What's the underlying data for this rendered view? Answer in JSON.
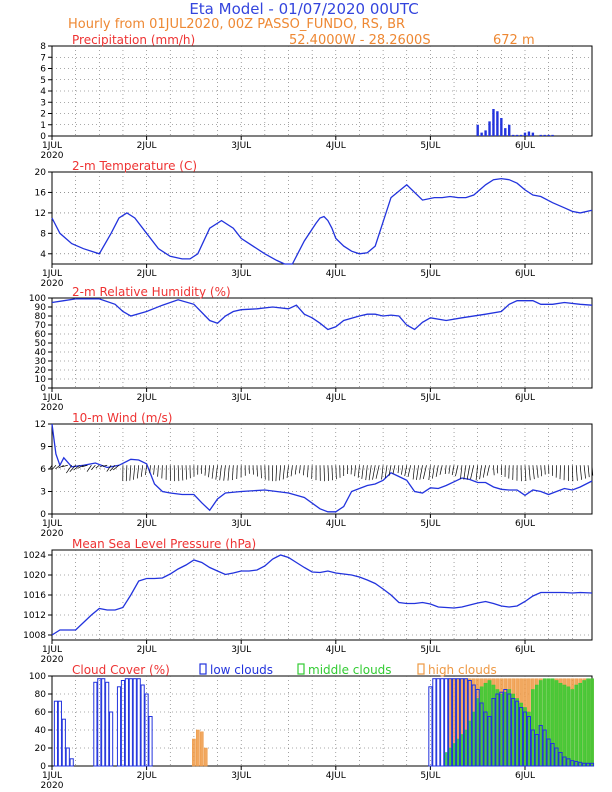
{
  "header": {
    "title": "Eta Model - 01/07/2020 00UTC",
    "line2": "Hourly from 01JUL2020, 00Z  PASSO_FUNDO, RS, BR",
    "coords": "52.4000W - 28.2600S",
    "elevation": "672  m"
  },
  "colors": {
    "title_blue": "#3344dd",
    "subtitle_orange": "#ee8833",
    "panel_red": "#ee3333",
    "line_blue": "#2233dd",
    "orange": "#ee9944",
    "green": "#33cc33"
  },
  "chart_data": [
    {
      "id": "precip",
      "type": "bar",
      "title": "Precipitation (mm/h)",
      "ylim": [
        0,
        8
      ],
      "yticks": [
        "0",
        "1",
        "2",
        "3",
        "4",
        "5",
        "6",
        "7",
        "8"
      ],
      "xticks": [
        "1JUL",
        "2JUL",
        "3JUL",
        "4JUL",
        "5JUL",
        "6JUL"
      ],
      "year": "2020",
      "x_hours": [
        108,
        109,
        110,
        111,
        112,
        113,
        114,
        115,
        116,
        117,
        118,
        119,
        120,
        121,
        122,
        124,
        125,
        126,
        127
      ],
      "values": [
        1.0,
        0.3,
        0.5,
        1.3,
        2.4,
        2.2,
        1.6,
        0.7,
        1.0,
        0.1,
        0.1,
        0.1,
        0.3,
        0.4,
        0.3,
        0.1,
        0.1,
        0.1,
        0.1
      ]
    },
    {
      "id": "temp",
      "type": "line",
      "title": "2-m Temperature (C)",
      "ylim": [
        2,
        20
      ],
      "yticks": [
        "4",
        "8",
        "12",
        "16",
        "20"
      ],
      "xticks": [
        "1JUL",
        "2JUL",
        "3JUL",
        "4JUL",
        "5JUL",
        "6JUL"
      ],
      "year": "2020",
      "x_hours": [
        0,
        2,
        5,
        8,
        12,
        15,
        17,
        19,
        21,
        24,
        27,
        30,
        33,
        35,
        37,
        40,
        43,
        46,
        48,
        50,
        54,
        57,
        59,
        61,
        64,
        67,
        68,
        69,
        70,
        71,
        72,
        74,
        76,
        78,
        80,
        82,
        86,
        90,
        94,
        97,
        99,
        101,
        103,
        105,
        107,
        110,
        112,
        114,
        116,
        118,
        120,
        122,
        124,
        127,
        130,
        132,
        134,
        137
      ],
      "values": [
        11,
        8,
        6,
        5,
        4,
        8,
        11,
        12,
        11,
        8,
        5,
        3.5,
        3,
        3,
        4,
        9,
        10.5,
        9,
        7,
        6,
        4,
        2.7,
        2,
        2,
        6.5,
        10,
        11,
        11.3,
        10.5,
        9,
        7,
        5.5,
        4.5,
        4,
        4.2,
        5.5,
        15,
        17.5,
        14.5,
        15,
        15,
        15.2,
        15,
        15,
        15.5,
        17.5,
        18.5,
        18.7,
        18.5,
        17.8,
        16.5,
        15.5,
        15.2,
        14,
        13,
        12.3,
        12,
        12.5
      ]
    },
    {
      "id": "rh",
      "type": "line",
      "title": "2-m Relative Humidity (%)",
      "ylim": [
        0,
        100
      ],
      "yticks": [
        "0",
        "10",
        "20",
        "30",
        "40",
        "50",
        "60",
        "70",
        "80",
        "90",
        "100"
      ],
      "xticks": [
        "1JUL",
        "2JUL",
        "3JUL",
        "4JUL",
        "5JUL",
        "6JUL"
      ],
      "year": "2020",
      "x_hours": [
        0,
        3,
        6,
        12,
        16,
        18,
        20,
        24,
        28,
        32,
        36,
        40,
        42,
        44,
        46,
        48,
        52,
        56,
        60,
        62,
        64,
        66,
        68,
        70,
        72,
        74,
        78,
        80,
        82,
        84,
        86,
        88,
        90,
        92,
        94,
        96,
        100,
        104,
        110,
        114,
        116,
        118,
        120,
        122,
        124,
        127,
        130,
        134,
        137
      ],
      "values": [
        95,
        97,
        99,
        99,
        93,
        85,
        80,
        85,
        92,
        98,
        93,
        75,
        72,
        80,
        85,
        87,
        88,
        90,
        88,
        92,
        82,
        78,
        72,
        65,
        68,
        75,
        80,
        82,
        82,
        80,
        81,
        80,
        70,
        65,
        73,
        78,
        75,
        78,
        82,
        85,
        93,
        97,
        97,
        97,
        93,
        93,
        95,
        93,
        92
      ]
    },
    {
      "id": "wind",
      "type": "line",
      "title": "10-m Wind (m/s)",
      "ylim": [
        0,
        12
      ],
      "yticks": [
        "0",
        "3",
        "6",
        "9",
        "12"
      ],
      "xticks": [
        "1JUL",
        "2JUL",
        "3JUL",
        "4JUL",
        "5JUL",
        "6JUL"
      ],
      "year": "2020",
      "x_hours": [
        0,
        1,
        2,
        3,
        5,
        8,
        11,
        14,
        17,
        20,
        22,
        24,
        26,
        28,
        30,
        33,
        36,
        38,
        40,
        42,
        44,
        48,
        54,
        60,
        64,
        68,
        70,
        72,
        74,
        76,
        78,
        80,
        82,
        84,
        86,
        88,
        90,
        92,
        94,
        96,
        98,
        100,
        102,
        104,
        106,
        108,
        110,
        112,
        114,
        116,
        118,
        120,
        122,
        124,
        126,
        128,
        130,
        132,
        134,
        137
      ],
      "values": [
        12,
        8,
        6.5,
        7.5,
        6.3,
        6.5,
        6.8,
        6.2,
        6.5,
        7.3,
        7.2,
        6.7,
        4,
        3,
        2.8,
        2.6,
        2.6,
        1.5,
        0.5,
        2,
        2.8,
        3,
        3.2,
        2.8,
        2.2,
        0.7,
        0.3,
        0.3,
        1,
        3,
        3.4,
        3.8,
        4,
        4.5,
        5.5,
        5,
        4.5,
        3,
        2.8,
        3.5,
        3.4,
        3.8,
        4.3,
        4.8,
        4.6,
        4.2,
        4.2,
        3.6,
        3.3,
        3.2,
        3.2,
        2.5,
        3.2,
        3,
        2.6,
        3,
        3.4,
        3.2,
        3.6,
        4.4
      ]
    },
    {
      "id": "mslp",
      "type": "line",
      "title": "Mean Sea Level Pressure (hPa)",
      "ylim": [
        1007,
        1025
      ],
      "yticks": [
        "1008",
        "1012",
        "1016",
        "1020",
        "1024"
      ],
      "xticks": [
        "1JUL",
        "2JUL",
        "3JUL",
        "4JUL",
        "5JUL",
        "6JUL"
      ],
      "year": "2020",
      "x_hours": [
        0,
        2,
        4,
        6,
        8,
        10,
        12,
        14,
        16,
        18,
        20,
        22,
        24,
        26,
        28,
        30,
        32,
        34,
        36,
        38,
        40,
        42,
        44,
        46,
        48,
        50,
        52,
        54,
        56,
        58,
        60,
        62,
        64,
        66,
        68,
        70,
        72,
        74,
        76,
        78,
        80,
        82,
        84,
        86,
        88,
        90,
        92,
        94,
        96,
        98,
        100,
        102,
        104,
        106,
        108,
        110,
        112,
        114,
        116,
        118,
        120,
        122,
        124,
        126,
        128,
        130,
        132,
        134,
        137
      ],
      "values": [
        1008,
        1009,
        1009,
        1009,
        1010.5,
        1012,
        1013.3,
        1013,
        1013,
        1013.5,
        1016,
        1018.8,
        1019.3,
        1019.3,
        1019.4,
        1020.2,
        1021.2,
        1022,
        1023,
        1022.5,
        1021.5,
        1020.8,
        1020.1,
        1020.4,
        1020.8,
        1020.8,
        1021,
        1021.8,
        1023.2,
        1024,
        1023.5,
        1022.5,
        1021.5,
        1020.6,
        1020.5,
        1020.8,
        1020.4,
        1020.2,
        1020,
        1019.6,
        1019,
        1018.3,
        1017.2,
        1016,
        1014.5,
        1014.3,
        1014.3,
        1014.5,
        1014.2,
        1013.6,
        1013.5,
        1013.4,
        1013.6,
        1014,
        1014.4,
        1014.7,
        1014.3,
        1013.8,
        1013.6,
        1013.8,
        1014.7,
        1015.8,
        1016.5,
        1016.5,
        1016.5,
        1016.5,
        1016.4,
        1016.5,
        1016.4
      ]
    },
    {
      "id": "clouds",
      "type": "bar",
      "title": "Cloud Cover (%)",
      "ylim": [
        0,
        100
      ],
      "yticks": [
        "0",
        "20",
        "40",
        "60",
        "80",
        "100"
      ],
      "xticks": [
        "1JUL",
        "2JUL",
        "3JUL",
        "4JUL",
        "5JUL",
        "6JUL"
      ],
      "year": "2020",
      "legend": [
        {
          "label": "low clouds",
          "color": "#2233dd"
        },
        {
          "label": "middle clouds",
          "color": "#33cc33"
        },
        {
          "label": "high clouds",
          "color": "#ee9944"
        }
      ],
      "series": [
        {
          "name": "low clouds",
          "color": "#2233dd",
          "x_hours": [
            1,
            2,
            3,
            4,
            5,
            11,
            12,
            13,
            14,
            15,
            17,
            18,
            19,
            20,
            21,
            22,
            23,
            24,
            25,
            96,
            97,
            98,
            99,
            100,
            101,
            102,
            103,
            104,
            105,
            106,
            107,
            108,
            109,
            110,
            111,
            112,
            113,
            114,
            115,
            116,
            117,
            118,
            119,
            120,
            121,
            122,
            123,
            124,
            125,
            126,
            127,
            128,
            129,
            130,
            131,
            132,
            133,
            134,
            135,
            136,
            137
          ],
          "values": [
            72,
            72,
            52,
            20,
            8,
            93,
            97,
            97,
            93,
            60,
            88,
            95,
            97,
            97,
            97,
            97,
            90,
            80,
            55,
            88,
            97,
            97,
            97,
            97,
            97,
            97,
            97,
            97,
            97,
            95,
            90,
            85,
            70,
            60,
            55,
            75,
            80,
            82,
            85,
            80,
            75,
            72,
            65,
            60,
            55,
            40,
            35,
            45,
            40,
            30,
            25,
            20,
            15,
            10,
            8,
            6,
            5,
            4,
            3,
            3,
            3
          ]
        },
        {
          "name": "middle clouds",
          "color": "#33cc33",
          "x_hours": [
            100,
            101,
            102,
            103,
            104,
            105,
            106,
            107,
            108,
            109,
            110,
            111,
            112,
            113,
            114,
            115,
            116,
            117,
            118,
            119,
            120,
            121,
            122,
            123,
            124,
            125,
            126,
            127,
            128,
            129,
            130,
            131,
            132,
            133,
            134,
            135,
            136,
            137
          ],
          "values": [
            15,
            20,
            25,
            30,
            35,
            40,
            50,
            60,
            75,
            88,
            92,
            95,
            90,
            85,
            80,
            82,
            85,
            80,
            75,
            70,
            65,
            60,
            85,
            90,
            95,
            97,
            97,
            97,
            95,
            92,
            90,
            88,
            85,
            90,
            92,
            95,
            97,
            97
          ]
        },
        {
          "name": "high clouds",
          "color": "#ee9944",
          "x_hours": [
            36,
            37,
            38,
            39,
            101,
            102,
            103,
            104,
            105,
            106,
            107,
            108,
            109,
            110,
            111,
            112,
            113,
            114,
            115,
            116,
            117,
            118,
            119,
            120,
            121,
            122,
            123,
            124,
            125,
            126,
            127,
            128,
            129,
            130,
            131,
            132,
            133,
            134,
            135,
            136,
            137
          ],
          "values": [
            30,
            40,
            38,
            20,
            97,
            97,
            97,
            97,
            97,
            97,
            97,
            97,
            97,
            97,
            97,
            97,
            97,
            97,
            97,
            97,
            97,
            97,
            97,
            97,
            97,
            97,
            97,
            97,
            97,
            97,
            97,
            97,
            97,
            97,
            97,
            97,
            97,
            97,
            97,
            97,
            97
          ]
        }
      ]
    }
  ]
}
